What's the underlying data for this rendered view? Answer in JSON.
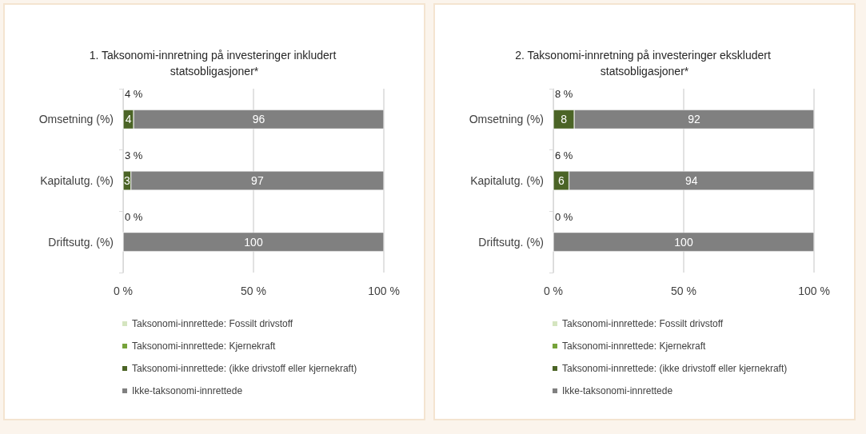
{
  "chart_data": [
    {
      "type": "bar",
      "orientation": "horizontal",
      "stacked": true,
      "title": "1. Taksonomi-innretning på investeringer inkludert statsobligasjoner*",
      "categories": [
        "Omsetning (%)",
        "Kapitalutg. (%)",
        "Driftsutg. (%)"
      ],
      "series": [
        {
          "name": "Taksonomi-innrettede: Fossilt drivstoff",
          "color": "#d5e5c0",
          "values": [
            0,
            0,
            0
          ]
        },
        {
          "name": "Taksonomi-innrettede: Kjernekraft",
          "color": "#76a33a",
          "values": [
            0,
            0,
            0
          ]
        },
        {
          "name": "Taksonomi-innrettede: (ikke drivstoff eller kjernekraft)",
          "color": "#4b6426",
          "values": [
            4,
            3,
            0
          ],
          "value_labels": [
            "4",
            "3",
            null
          ]
        },
        {
          "name": "Ikke-taksonomi-innrettede",
          "color": "#808080",
          "values": [
            96,
            97,
            100
          ],
          "value_labels": [
            "96",
            "97",
            "100"
          ]
        }
      ],
      "xlim": [
        0,
        100
      ],
      "xticks": [
        {
          "value": 0,
          "label": "0 %"
        },
        {
          "value": 50,
          "label": "50 %"
        },
        {
          "value": 100,
          "label": "100 %"
        }
      ],
      "grid": "x",
      "legend": "bottom left",
      "annotations": [
        "4 %",
        "3 %",
        "0 %"
      ]
    },
    {
      "type": "bar",
      "orientation": "horizontal",
      "stacked": true,
      "title": "2. Taksonomi-innretning på investeringer ekskludert statsobligasjoner*",
      "categories": [
        "Omsetning (%)",
        "Kapitalutg. (%)",
        "Driftsutg. (%)"
      ],
      "series": [
        {
          "name": "Taksonomi-innrettede: Fossilt drivstoff",
          "color": "#d5e5c0",
          "values": [
            0,
            0,
            0
          ]
        },
        {
          "name": "Taksonomi-innrettede: Kjernekraft",
          "color": "#76a33a",
          "values": [
            0,
            0,
            0
          ]
        },
        {
          "name": "Taksonomi-innrettede: (ikke drivstoff eller kjernekraft)",
          "color": "#4b6426",
          "values": [
            8,
            6,
            0
          ],
          "value_labels": [
            "8",
            "6",
            null
          ]
        },
        {
          "name": "Ikke-taksonomi-innrettede",
          "color": "#808080",
          "values": [
            92,
            94,
            100
          ],
          "value_labels": [
            "92",
            "94",
            "100"
          ]
        }
      ],
      "xlim": [
        0,
        100
      ],
      "xticks": [
        {
          "value": 0,
          "label": "0 %"
        },
        {
          "value": 50,
          "label": "50 %"
        },
        {
          "value": 100,
          "label": "100 %"
        }
      ],
      "grid": "x",
      "legend": "bottom left",
      "annotations": [
        "8 %",
        "6 %",
        "0 %"
      ]
    }
  ]
}
